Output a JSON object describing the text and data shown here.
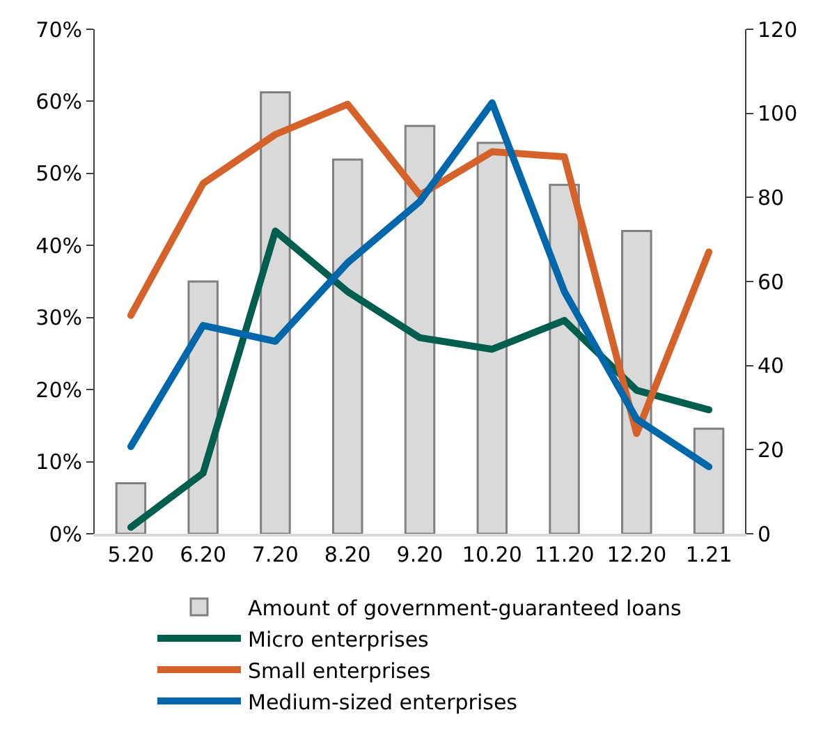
{
  "chart_data": {
    "type": "line",
    "categories": [
      "5.20",
      "6.20",
      "7.20",
      "8.20",
      "9.20",
      "10.20",
      "11.20",
      "12.20",
      "1.21"
    ],
    "series": [
      {
        "name": "Amount of government-guaranteed loans",
        "type": "bar",
        "axis": "y2",
        "color": "#d9d9d9",
        "values": [
          12,
          60,
          105,
          89,
          97,
          93,
          83,
          72,
          25
        ]
      },
      {
        "name": "Micro enterprises",
        "color": "#005e4e",
        "values": [
          0.9,
          8.4,
          42,
          33.6,
          27.2,
          25.6,
          29.6,
          19.9,
          17.2
        ]
      },
      {
        "name": "Small enterprises",
        "color": "#d4622a",
        "values": [
          30.3,
          48.6,
          55.4,
          59.6,
          47,
          53,
          52.3,
          13.9,
          39.1
        ]
      },
      {
        "name": "Medium-sized enterprises",
        "color": "#0068aa",
        "values": [
          12.1,
          28.9,
          26.7,
          37.6,
          46.1,
          59.8,
          33.6,
          15.9,
          9.3
        ]
      }
    ],
    "ylim": [
      0,
      70
    ],
    "yticks": [
      {
        "value": 0,
        "label": "0%"
      },
      {
        "value": 10,
        "label": "10%"
      },
      {
        "value": 20,
        "label": "20%"
      },
      {
        "value": 30,
        "label": "30%"
      },
      {
        "value": 40,
        "label": "40%"
      },
      {
        "value": 50,
        "label": "50%"
      },
      {
        "value": 60,
        "label": "60%"
      },
      {
        "value": 70,
        "label": "70%"
      }
    ],
    "y2lim": [
      0,
      120
    ],
    "y2ticks": [
      0,
      20,
      40,
      60,
      80,
      100,
      120
    ],
    "legend": "bottom",
    "marker": "none",
    "line_style": "solid"
  }
}
